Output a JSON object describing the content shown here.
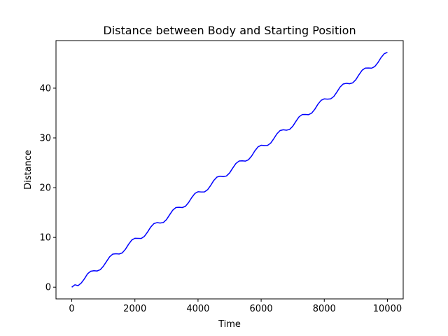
{
  "chart_data": {
    "type": "line",
    "title": "Distance between Body and Starting Position",
    "xlabel": "Time",
    "ylabel": "Distance",
    "x": [
      0,
      100,
      200,
      300,
      400,
      500,
      600,
      700,
      800,
      900,
      1000,
      1100,
      1200,
      1300,
      1400,
      1500,
      1600,
      1700,
      1800,
      1900,
      2000,
      2100,
      2200,
      2300,
      2400,
      2500,
      2600,
      2700,
      2800,
      2900,
      3000,
      3100,
      3200,
      3300,
      3400,
      3500,
      3600,
      3700,
      3800,
      3900,
      4000,
      4100,
      4200,
      4300,
      4400,
      4500,
      4600,
      4700,
      4800,
      4900,
      5000,
      5100,
      5200,
      5300,
      5400,
      5500,
      5600,
      5700,
      5800,
      5900,
      6000,
      6100,
      6200,
      6300,
      6400,
      6500,
      6600,
      6700,
      6800,
      6900,
      7000,
      7100,
      7200,
      7300,
      7400,
      7500,
      7600,
      7700,
      7800,
      7900,
      8000,
      8100,
      8200,
      8300,
      8400,
      8500,
      8600,
      8700,
      8800,
      8900,
      9000,
      9100,
      9200,
      9300,
      9400,
      9500,
      9600,
      9700,
      9800,
      9900,
      10000
    ],
    "series": [
      {
        "name": "Distance",
        "color": "#0000ff",
        "values": [
          0,
          0.48,
          0.3,
          0.83,
          1.68,
          2.69,
          3.2,
          3.3,
          3.25,
          3.5,
          4.2,
          5.16,
          6.11,
          6.65,
          6.72,
          6.66,
          6.89,
          7.62,
          8.62,
          9.47,
          9.83,
          9.81,
          9.8,
          10.2,
          11.07,
          12.07,
          12.77,
          12.97,
          12.89,
          12.99,
          13.58,
          14.55,
          15.48,
          16.0,
          16.06,
          16.0,
          16.25,
          17.0,
          18.01,
          18.83,
          19.18,
          19.14,
          19.14,
          19.57,
          20.45,
          21.46,
          22.13,
          22.3,
          22.21,
          22.34,
          22.96,
          23.94,
          24.86,
          25.35,
          25.39,
          25.34,
          25.62,
          26.38,
          27.4,
          28.2,
          28.52,
          28.47,
          28.49,
          28.94,
          29.84,
          30.83,
          31.48,
          31.64,
          31.55,
          31.7,
          32.33,
          33.32,
          34.23,
          34.69,
          34.72,
          34.67,
          34.98,
          35.76,
          36.78,
          37.56,
          37.85,
          37.8,
          37.84,
          38.31,
          39.23,
          40.22,
          40.84,
          40.97,
          40.89,
          41.06,
          41.71,
          42.71,
          43.61,
          44.04,
          44.06,
          44.02,
          44.34,
          45.15,
          46.17,
          46.93,
          47.2
        ]
      }
    ],
    "xlim": [
      -500,
      10500
    ],
    "ylim": [
      -2.36,
      49.56
    ],
    "xticks": [
      0,
      2000,
      4000,
      6000,
      8000,
      10000
    ],
    "yticks": [
      0,
      10,
      20,
      30,
      40
    ],
    "grid": false
  }
}
